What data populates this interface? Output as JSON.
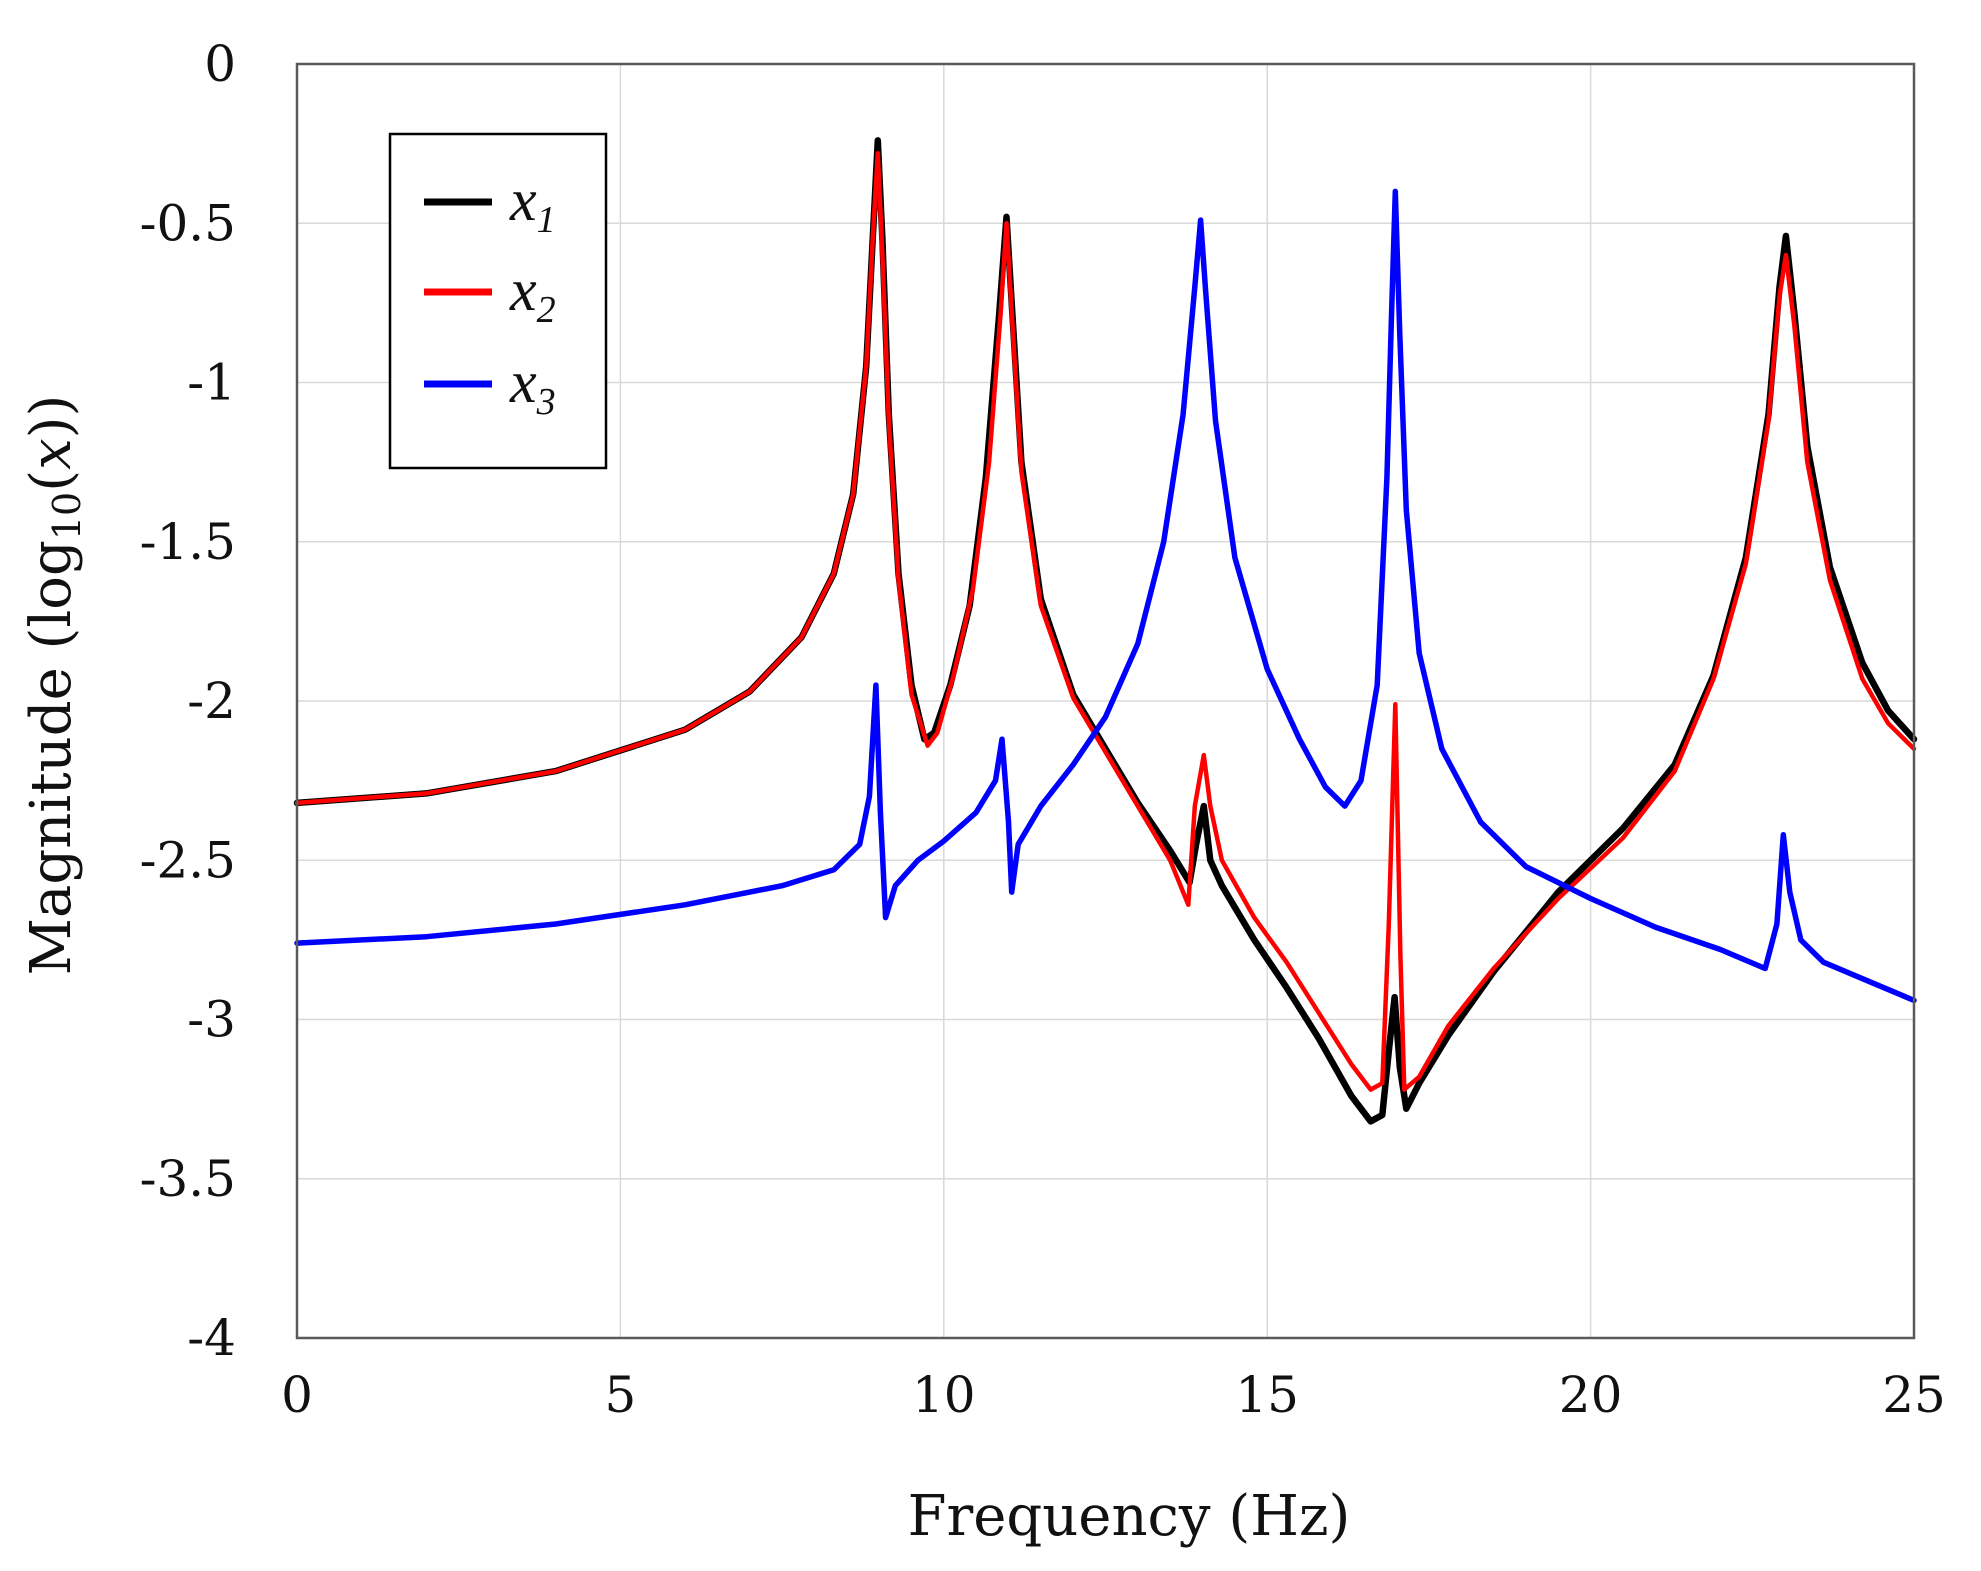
{
  "chart_data": {
    "type": "line",
    "title": "",
    "xlabel": "Frequency (Hz)",
    "ylabel": "Magnitude (log10(x))",
    "ylabel_parts": {
      "pre": "Magnitude (log",
      "sub": "10",
      "mid": "(",
      "var": "x",
      "post": "))"
    },
    "xlim": [
      0,
      25
    ],
    "ylim": [
      -4,
      0
    ],
    "xticks": [
      0,
      5,
      10,
      15,
      20,
      25
    ],
    "yticks": [
      0,
      -0.5,
      -1,
      -1.5,
      -2,
      -2.5,
      -3,
      -3.5,
      -4
    ],
    "xtick_labels": [
      "0",
      "5",
      "10",
      "15",
      "20",
      "25"
    ],
    "ytick_labels": [
      "0",
      "-0.5",
      "-1",
      "-1.5",
      "-2",
      "-2.5",
      "-3",
      "-3.5",
      "-4"
    ],
    "grid": true,
    "legend_position": "top-left",
    "series": [
      {
        "name": "x1",
        "label_base": "x",
        "label_sub": "1",
        "color": "#000000",
        "points": [
          [
            0,
            -2.32
          ],
          [
            2,
            -2.29
          ],
          [
            4,
            -2.22
          ],
          [
            6,
            -2.09
          ],
          [
            7,
            -1.97
          ],
          [
            7.8,
            -1.8
          ],
          [
            8.3,
            -1.6
          ],
          [
            8.6,
            -1.35
          ],
          [
            8.8,
            -0.95
          ],
          [
            8.9,
            -0.55
          ],
          [
            8.98,
            -0.24
          ],
          [
            9.05,
            -0.55
          ],
          [
            9.15,
            -1.1
          ],
          [
            9.3,
            -1.6
          ],
          [
            9.5,
            -1.95
          ],
          [
            9.7,
            -2.12
          ],
          [
            9.85,
            -2.1
          ],
          [
            10.1,
            -1.95
          ],
          [
            10.4,
            -1.7
          ],
          [
            10.65,
            -1.3
          ],
          [
            10.85,
            -0.8
          ],
          [
            10.97,
            -0.48
          ],
          [
            11.05,
            -0.75
          ],
          [
            11.2,
            -1.25
          ],
          [
            11.5,
            -1.68
          ],
          [
            12,
            -1.98
          ],
          [
            12.5,
            -2.15
          ],
          [
            13,
            -2.32
          ],
          [
            13.5,
            -2.47
          ],
          [
            13.8,
            -2.57
          ],
          [
            13.9,
            -2.45
          ],
          [
            14.02,
            -2.33
          ],
          [
            14.12,
            -2.5
          ],
          [
            14.3,
            -2.58
          ],
          [
            14.8,
            -2.75
          ],
          [
            15.3,
            -2.9
          ],
          [
            15.8,
            -3.06
          ],
          [
            16.3,
            -3.24
          ],
          [
            16.6,
            -3.32
          ],
          [
            16.78,
            -3.3
          ],
          [
            16.88,
            -3.1
          ],
          [
            16.97,
            -2.93
          ],
          [
            17.05,
            -3.15
          ],
          [
            17.15,
            -3.28
          ],
          [
            17.35,
            -3.2
          ],
          [
            17.8,
            -3.05
          ],
          [
            18.5,
            -2.85
          ],
          [
            19.5,
            -2.6
          ],
          [
            20.5,
            -2.4
          ],
          [
            21.3,
            -2.2
          ],
          [
            21.9,
            -1.92
          ],
          [
            22.4,
            -1.55
          ],
          [
            22.75,
            -1.1
          ],
          [
            22.92,
            -0.7
          ],
          [
            23.02,
            -0.54
          ],
          [
            23.15,
            -0.78
          ],
          [
            23.35,
            -1.2
          ],
          [
            23.7,
            -1.58
          ],
          [
            24.2,
            -1.88
          ],
          [
            24.6,
            -2.03
          ],
          [
            25,
            -2.12
          ]
        ]
      },
      {
        "name": "x2",
        "label_base": "x",
        "label_sub": "2",
        "color": "#ff0000",
        "points": [
          [
            0,
            -2.32
          ],
          [
            2,
            -2.29
          ],
          [
            4,
            -2.22
          ],
          [
            6,
            -2.09
          ],
          [
            7,
            -1.97
          ],
          [
            7.8,
            -1.8
          ],
          [
            8.3,
            -1.6
          ],
          [
            8.6,
            -1.35
          ],
          [
            8.8,
            -0.95
          ],
          [
            8.9,
            -0.55
          ],
          [
            8.98,
            -0.28
          ],
          [
            9.05,
            -0.6
          ],
          [
            9.15,
            -1.12
          ],
          [
            9.3,
            -1.62
          ],
          [
            9.5,
            -1.98
          ],
          [
            9.75,
            -2.14
          ],
          [
            9.9,
            -2.1
          ],
          [
            10.15,
            -1.92
          ],
          [
            10.45,
            -1.65
          ],
          [
            10.7,
            -1.25
          ],
          [
            10.88,
            -0.78
          ],
          [
            10.97,
            -0.5
          ],
          [
            11.05,
            -0.78
          ],
          [
            11.2,
            -1.28
          ],
          [
            11.5,
            -1.7
          ],
          [
            12,
            -1.99
          ],
          [
            12.5,
            -2.16
          ],
          [
            13,
            -2.33
          ],
          [
            13.5,
            -2.5
          ],
          [
            13.78,
            -2.64
          ],
          [
            13.88,
            -2.33
          ],
          [
            14.02,
            -2.17
          ],
          [
            14.12,
            -2.33
          ],
          [
            14.3,
            -2.5
          ],
          [
            14.8,
            -2.68
          ],
          [
            15.3,
            -2.82
          ],
          [
            15.8,
            -2.98
          ],
          [
            16.3,
            -3.14
          ],
          [
            16.6,
            -3.22
          ],
          [
            16.78,
            -3.2
          ],
          [
            16.88,
            -2.7
          ],
          [
            16.98,
            -2.01
          ],
          [
            17.06,
            -2.8
          ],
          [
            17.12,
            -3.22
          ],
          [
            17.35,
            -3.18
          ],
          [
            17.8,
            -3.02
          ],
          [
            18.5,
            -2.84
          ],
          [
            19.5,
            -2.62
          ],
          [
            20.5,
            -2.43
          ],
          [
            21.3,
            -2.22
          ],
          [
            21.9,
            -1.93
          ],
          [
            22.4,
            -1.57
          ],
          [
            22.75,
            -1.12
          ],
          [
            22.92,
            -0.73
          ],
          [
            23.02,
            -0.6
          ],
          [
            23.15,
            -0.82
          ],
          [
            23.35,
            -1.25
          ],
          [
            23.7,
            -1.62
          ],
          [
            24.2,
            -1.93
          ],
          [
            24.6,
            -2.07
          ],
          [
            25,
            -2.15
          ]
        ]
      },
      {
        "name": "x3",
        "label_base": "x",
        "label_sub": "3",
        "color": "#0000ff",
        "points": [
          [
            0,
            -2.76
          ],
          [
            2,
            -2.74
          ],
          [
            4,
            -2.7
          ],
          [
            6,
            -2.64
          ],
          [
            7.5,
            -2.58
          ],
          [
            8.3,
            -2.53
          ],
          [
            8.7,
            -2.45
          ],
          [
            8.85,
            -2.3
          ],
          [
            8.95,
            -1.95
          ],
          [
            9.02,
            -2.35
          ],
          [
            9.1,
            -2.68
          ],
          [
            9.25,
            -2.58
          ],
          [
            9.6,
            -2.5
          ],
          [
            10,
            -2.44
          ],
          [
            10.5,
            -2.35
          ],
          [
            10.8,
            -2.25
          ],
          [
            10.9,
            -2.12
          ],
          [
            11,
            -2.38
          ],
          [
            11.05,
            -2.6
          ],
          [
            11.15,
            -2.45
          ],
          [
            11.5,
            -2.33
          ],
          [
            12,
            -2.2
          ],
          [
            12.5,
            -2.05
          ],
          [
            13,
            -1.82
          ],
          [
            13.4,
            -1.5
          ],
          [
            13.7,
            -1.1
          ],
          [
            13.88,
            -0.7
          ],
          [
            13.97,
            -0.49
          ],
          [
            14.05,
            -0.72
          ],
          [
            14.2,
            -1.12
          ],
          [
            14.5,
            -1.55
          ],
          [
            15,
            -1.9
          ],
          [
            15.5,
            -2.12
          ],
          [
            15.9,
            -2.27
          ],
          [
            16.2,
            -2.33
          ],
          [
            16.45,
            -2.25
          ],
          [
            16.7,
            -1.95
          ],
          [
            16.85,
            -1.3
          ],
          [
            16.92,
            -0.8
          ],
          [
            16.98,
            -0.4
          ],
          [
            17.05,
            -0.85
          ],
          [
            17.15,
            -1.4
          ],
          [
            17.35,
            -1.85
          ],
          [
            17.7,
            -2.15
          ],
          [
            18.3,
            -2.38
          ],
          [
            19,
            -2.52
          ],
          [
            20,
            -2.62
          ],
          [
            21,
            -2.71
          ],
          [
            22,
            -2.78
          ],
          [
            22.7,
            -2.84
          ],
          [
            22.88,
            -2.7
          ],
          [
            22.98,
            -2.42
          ],
          [
            23.08,
            -2.6
          ],
          [
            23.25,
            -2.75
          ],
          [
            23.6,
            -2.82
          ],
          [
            24.3,
            -2.88
          ],
          [
            25,
            -2.94
          ]
        ]
      }
    ]
  }
}
